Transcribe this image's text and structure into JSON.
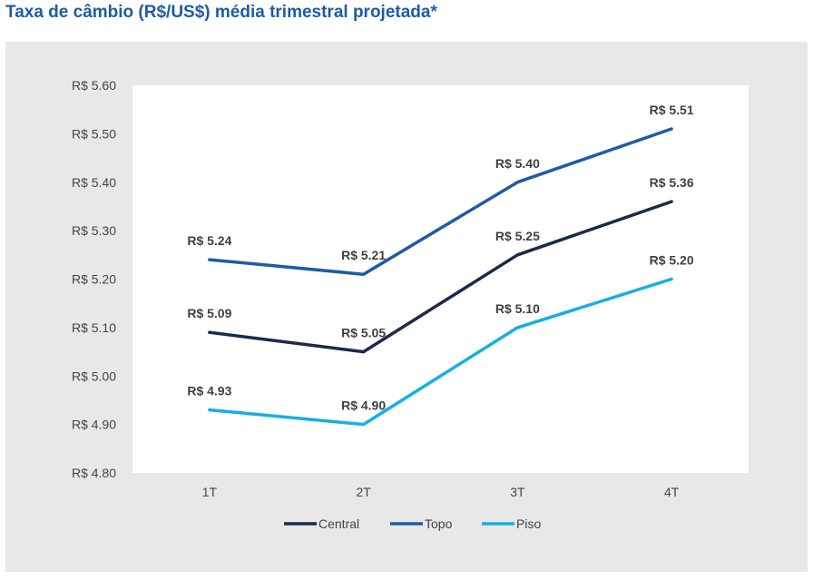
{
  "title": "Taxa de câmbio (R$/US$)  média trimestral projetada*",
  "chart_data": {
    "type": "line",
    "categories": [
      "1T",
      "2T",
      "3T",
      "4T"
    ],
    "ylim": [
      4.8,
      5.6
    ],
    "yticks": [
      "R$ 5.60",
      "R$ 5.50",
      "R$ 5.40",
      "R$ 5.30",
      "R$ 5.20",
      "R$ 5.10",
      "R$ 5.00",
      "R$ 4.90",
      "R$ 4.80"
    ],
    "ytick_values": [
      5.6,
      5.5,
      5.4,
      5.3,
      5.2,
      5.1,
      5.0,
      4.9,
      4.8
    ],
    "legend_position": "bottom",
    "series": [
      {
        "name": "Central",
        "color": "#1b2a4a",
        "values": [
          5.09,
          5.05,
          5.25,
          5.36
        ],
        "labels": [
          "R$ 5.09",
          "R$ 5.05",
          "R$ 5.25",
          "R$ 5.36"
        ]
      },
      {
        "name": "Topo",
        "color": "#1f5ba6",
        "values": [
          5.24,
          5.21,
          5.4,
          5.51
        ],
        "labels": [
          "R$ 5.24",
          "R$ 5.21",
          "R$ 5.40",
          "R$ 5.51"
        ]
      },
      {
        "name": "Piso",
        "color": "#15b0e3",
        "values": [
          4.93,
          4.9,
          5.1,
          5.2
        ],
        "labels": [
          "R$ 4.93",
          "R$ 4.90",
          "R$ 5.10",
          "R$ 5.20"
        ]
      }
    ]
  }
}
